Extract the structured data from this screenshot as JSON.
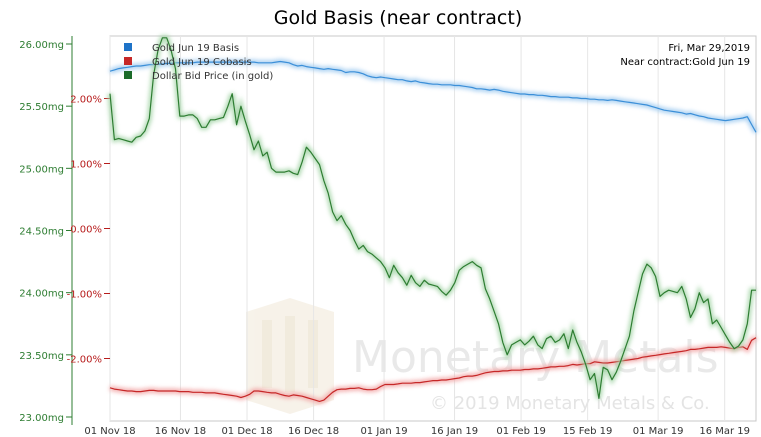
{
  "chart_data": {
    "type": "line",
    "title": "Gold Basis (near contract)",
    "info_date": "Fri, Mar 29,2019",
    "info_contract": "Near contract:Gold Jun 19",
    "watermark": "Monetary Metals",
    "copyright": "© 2019 Monetary Metals & Co.",
    "x_ticks": [
      "01 Nov 18",
      "16 Nov 18",
      "01 Dec 18",
      "16 Dec 18",
      "01 Jan 19",
      "16 Jan 19",
      "01 Feb 19",
      "15 Feb 19",
      "01 Mar 19",
      "16 Mar 19"
    ],
    "left_axis": {
      "ylim": [
        23.0,
        26.0
      ],
      "ticks": [
        "23.00mg",
        "23.50mg",
        "24.00mg",
        "24.50mg",
        "25.00mg",
        "25.50mg",
        "26.00mg"
      ]
    },
    "right_axis": {
      "ylim": [
        -3.0,
        2.8
      ],
      "ticks": [
        "-2.00%",
        "-1.00%",
        "0.00%",
        "1.00%",
        "2.00%"
      ]
    },
    "series": [
      {
        "name": "Gold Jun 19 Basis",
        "axis": "right",
        "color": "#3b8fd8",
        "x": [
          0,
          1,
          2,
          3,
          4,
          5,
          6,
          7,
          8,
          9,
          10,
          11,
          12,
          13,
          14,
          15,
          16,
          17,
          18,
          19,
          20,
          21,
          22,
          23,
          24,
          25,
          26,
          27,
          28,
          29,
          30,
          31,
          32,
          33,
          34,
          35,
          36,
          37,
          38,
          39,
          40,
          41,
          42,
          43,
          44,
          45,
          46,
          47,
          48,
          49,
          50,
          51,
          52,
          53,
          54,
          55,
          56,
          57,
          58,
          59,
          60,
          61,
          62,
          63,
          64,
          65,
          66,
          67,
          68,
          69,
          70,
          71,
          72,
          73,
          74,
          75,
          76,
          77,
          78,
          79,
          80,
          81,
          82,
          83,
          84,
          85,
          86,
          87,
          88,
          89,
          90,
          91,
          92,
          93,
          94,
          95,
          96,
          97,
          98,
          99,
          100,
          101,
          102,
          103,
          104,
          105,
          106,
          107,
          108,
          109,
          110,
          111,
          112,
          113,
          114,
          115,
          116,
          117,
          118,
          119,
          120,
          121,
          122,
          123,
          124,
          125,
          126,
          127,
          128,
          129,
          130,
          131,
          132,
          133,
          134,
          135,
          136,
          137,
          138,
          139,
          140,
          141,
          142,
          143,
          144,
          145,
          146,
          147,
          148
        ],
        "values": [
          2.42,
          2.44,
          2.46,
          2.47,
          2.48,
          2.49,
          2.5,
          2.5,
          2.51,
          2.52,
          2.52,
          2.53,
          2.53,
          2.54,
          2.54,
          2.55,
          2.55,
          2.55,
          2.55,
          2.55,
          2.56,
          2.56,
          2.56,
          2.56,
          2.56,
          2.56,
          2.56,
          2.56,
          2.56,
          2.56,
          2.56,
          2.56,
          2.56,
          2.56,
          2.55,
          2.55,
          2.55,
          2.55,
          2.56,
          2.57,
          2.56,
          2.55,
          2.52,
          2.5,
          2.51,
          2.49,
          2.48,
          2.47,
          2.46,
          2.45,
          2.46,
          2.45,
          2.44,
          2.43,
          2.4,
          2.41,
          2.41,
          2.4,
          2.38,
          2.35,
          2.33,
          2.32,
          2.33,
          2.32,
          2.31,
          2.3,
          2.29,
          2.29,
          2.27,
          2.26,
          2.27,
          2.25,
          2.24,
          2.23,
          2.22,
          2.22,
          2.21,
          2.21,
          2.21,
          2.2,
          2.2,
          2.19,
          2.18,
          2.17,
          2.15,
          2.15,
          2.14,
          2.13,
          2.14,
          2.13,
          2.11,
          2.1,
          2.09,
          2.08,
          2.07,
          2.07,
          2.06,
          2.06,
          2.05,
          2.05,
          2.04,
          2.03,
          2.03,
          2.02,
          2.02,
          2.02,
          2.01,
          2.01,
          2.0,
          2.0,
          1.99,
          1.99,
          1.98,
          1.98,
          1.97,
          1.98,
          1.97,
          1.96,
          1.95,
          1.94,
          1.93,
          1.92,
          1.91,
          1.9,
          1.88,
          1.86,
          1.84,
          1.82,
          1.81,
          1.8,
          1.79,
          1.78,
          1.76,
          1.77,
          1.75,
          1.73,
          1.72,
          1.7,
          1.69,
          1.68,
          1.67,
          1.66,
          1.67,
          1.68,
          1.69,
          1.7,
          1.72,
          1.6,
          1.48
        ]
      },
      {
        "name": "Gold Jun 19 Cobasis",
        "axis": "right",
        "color": "#c62828",
        "x": [
          0,
          1,
          2,
          3,
          4,
          5,
          6,
          7,
          8,
          9,
          10,
          11,
          12,
          13,
          14,
          15,
          16,
          17,
          18,
          19,
          20,
          21,
          22,
          23,
          24,
          25,
          26,
          27,
          28,
          29,
          30,
          31,
          32,
          33,
          34,
          35,
          36,
          37,
          38,
          39,
          40,
          41,
          42,
          43,
          44,
          45,
          46,
          47,
          48,
          49,
          50,
          51,
          52,
          53,
          54,
          55,
          56,
          57,
          58,
          59,
          60,
          61,
          62,
          63,
          64,
          65,
          66,
          67,
          68,
          69,
          70,
          71,
          72,
          73,
          74,
          75,
          76,
          77,
          78,
          79,
          80,
          81,
          82,
          83,
          84,
          85,
          86,
          87,
          88,
          89,
          90,
          91,
          92,
          93,
          94,
          95,
          96,
          97,
          98,
          99,
          100,
          101,
          102,
          103,
          104,
          105,
          106,
          107,
          108,
          109,
          110,
          111,
          112,
          113,
          114,
          115,
          116,
          117,
          118,
          119,
          120,
          121,
          122,
          123,
          124,
          125,
          126,
          127,
          128,
          129,
          130,
          131,
          132,
          133,
          134,
          135,
          136,
          137,
          138,
          139,
          140,
          141,
          142,
          143,
          144,
          145,
          146,
          147,
          148
        ],
        "values": [
          -2.45,
          -2.47,
          -2.48,
          -2.49,
          -2.5,
          -2.5,
          -2.51,
          -2.51,
          -2.5,
          -2.49,
          -2.49,
          -2.5,
          -2.5,
          -2.5,
          -2.5,
          -2.5,
          -2.51,
          -2.51,
          -2.51,
          -2.52,
          -2.52,
          -2.52,
          -2.53,
          -2.53,
          -2.53,
          -2.54,
          -2.55,
          -2.56,
          -2.57,
          -2.58,
          -2.6,
          -2.58,
          -2.55,
          -2.5,
          -2.5,
          -2.51,
          -2.52,
          -2.53,
          -2.53,
          -2.55,
          -2.57,
          -2.58,
          -2.56,
          -2.57,
          -2.58,
          -2.6,
          -2.62,
          -2.64,
          -2.66,
          -2.64,
          -2.58,
          -2.52,
          -2.48,
          -2.47,
          -2.47,
          -2.46,
          -2.46,
          -2.45,
          -2.47,
          -2.48,
          -2.48,
          -2.47,
          -2.43,
          -2.4,
          -2.4,
          -2.4,
          -2.39,
          -2.38,
          -2.38,
          -2.38,
          -2.37,
          -2.37,
          -2.36,
          -2.35,
          -2.34,
          -2.34,
          -2.33,
          -2.33,
          -2.32,
          -2.31,
          -2.3,
          -2.28,
          -2.27,
          -2.27,
          -2.26,
          -2.24,
          -2.22,
          -2.21,
          -2.2,
          -2.2,
          -2.19,
          -2.19,
          -2.18,
          -2.18,
          -2.18,
          -2.17,
          -2.17,
          -2.16,
          -2.16,
          -2.15,
          -2.14,
          -2.13,
          -2.13,
          -2.12,
          -2.12,
          -2.11,
          -2.09,
          -2.1,
          -2.09,
          -2.08,
          -2.08,
          -2.05,
          -2.06,
          -2.07,
          -2.07,
          -2.06,
          -2.05,
          -2.04,
          -2.03,
          -2.02,
          -2.01,
          -2.0,
          -1.98,
          -1.97,
          -1.96,
          -1.95,
          -1.94,
          -1.93,
          -1.92,
          -1.91,
          -1.9,
          -1.89,
          -1.88,
          -1.86,
          -1.86,
          -1.85,
          -1.84,
          -1.83,
          -1.83,
          -1.83,
          -1.82,
          -1.83,
          -1.84,
          -1.85,
          -1.83,
          -1.82,
          -1.86,
          -1.72,
          -1.68
        ]
      },
      {
        "name": "Dollar Bid Price (in gold)",
        "axis": "left",
        "color": "#2e7d32",
        "x": [
          0,
          1,
          2,
          3,
          4,
          5,
          6,
          7,
          8,
          9,
          10,
          11,
          12,
          13,
          14,
          15,
          16,
          17,
          18,
          19,
          20,
          21,
          22,
          23,
          24,
          25,
          26,
          27,
          28,
          29,
          30,
          31,
          32,
          33,
          34,
          35,
          36,
          37,
          38,
          39,
          40,
          41,
          42,
          43,
          44,
          45,
          46,
          47,
          48,
          49,
          50,
          51,
          52,
          53,
          54,
          55,
          56,
          57,
          58,
          59,
          60,
          61,
          62,
          63,
          64,
          65,
          66,
          67,
          68,
          69,
          70,
          71,
          72,
          73,
          74,
          75,
          76,
          77,
          78,
          79,
          80,
          81,
          82,
          83,
          84,
          85,
          86,
          87,
          88,
          89,
          90,
          91,
          92,
          93,
          94,
          95,
          96,
          97,
          98,
          99,
          100,
          101,
          102,
          103,
          104,
          105,
          106,
          107,
          108,
          109,
          110,
          111,
          112,
          113,
          114,
          115,
          116,
          117,
          118,
          119,
          120,
          121,
          122,
          123,
          124,
          125,
          126,
          127,
          128,
          129,
          130,
          131,
          132,
          133,
          134,
          135,
          136,
          137,
          138,
          139,
          140,
          141,
          142,
          143,
          144,
          145,
          146,
          147,
          148
        ],
        "values": [
          25.6,
          25.23,
          25.24,
          25.23,
          25.22,
          25.21,
          25.25,
          25.26,
          25.3,
          25.4,
          25.75,
          25.95,
          26.05,
          26.05,
          25.95,
          25.8,
          25.42,
          25.42,
          25.43,
          25.43,
          25.4,
          25.33,
          25.33,
          25.39,
          25.39,
          25.4,
          25.41,
          25.5,
          25.6,
          25.35,
          25.5,
          25.38,
          25.27,
          25.15,
          25.22,
          25.1,
          25.13,
          25.0,
          24.97,
          24.97,
          24.97,
          24.98,
          24.96,
          24.95,
          25.05,
          25.17,
          25.13,
          25.08,
          25.03,
          24.9,
          24.8,
          24.65,
          24.58,
          24.62,
          24.55,
          24.5,
          24.42,
          24.35,
          24.38,
          24.33,
          24.31,
          24.28,
          24.25,
          24.2,
          24.12,
          24.22,
          24.16,
          24.12,
          24.06,
          24.14,
          24.08,
          24.05,
          24.1,
          24.07,
          24.06,
          24.05,
          24.01,
          23.98,
          24.02,
          24.08,
          24.18,
          24.21,
          24.23,
          24.25,
          24.22,
          24.2,
          24.03,
          23.95,
          23.85,
          23.75,
          23.6,
          23.5,
          23.58,
          23.6,
          23.62,
          23.58,
          23.61,
          23.65,
          23.58,
          23.55,
          23.63,
          23.65,
          23.6,
          23.62,
          23.67,
          23.55,
          23.7,
          23.6,
          23.52,
          23.42,
          23.3,
          23.35,
          23.15,
          23.4,
          23.38,
          23.3,
          23.36,
          23.45,
          23.55,
          23.65,
          23.85,
          24.0,
          24.15,
          24.23,
          24.2,
          24.13,
          23.97,
          24.0,
          24.02,
          24.01,
          24.0,
          24.05,
          23.95,
          23.8,
          23.87,
          24.0,
          23.92,
          23.95,
          23.75,
          23.78,
          23.72,
          23.66,
          23.6,
          23.55,
          23.57,
          23.62,
          23.75,
          24.02,
          24.02
        ]
      }
    ],
    "legend_position": "top-left",
    "grid": "vertical"
  }
}
